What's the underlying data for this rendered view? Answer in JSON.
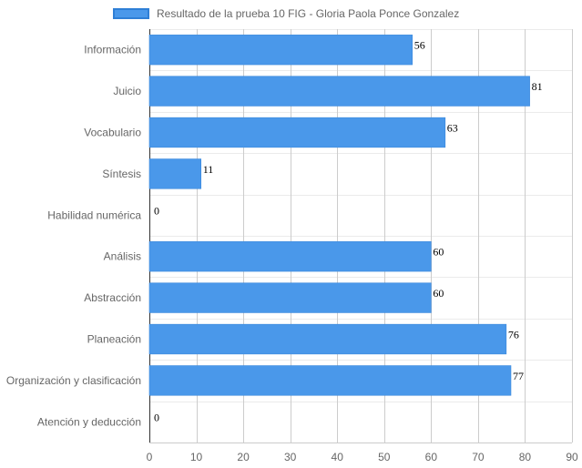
{
  "chart_data": {
    "type": "bar",
    "orientation": "horizontal",
    "categories": [
      "Información",
      "Juicio",
      "Vocabulario",
      "Síntesis",
      "Habilidad numérica",
      "Análisis",
      "Abstracción",
      "Planeación",
      "Organización y clasificación",
      "Atención y deducción"
    ],
    "series": [
      {
        "name": "Resultado de la prueba 10 FIG - Gloria Paola Ponce Gonzalez",
        "values": [
          56,
          81,
          63,
          11,
          0,
          60,
          60,
          76,
          77,
          0
        ],
        "color": "#4a98ea"
      }
    ],
    "xlim": [
      0,
      90
    ],
    "xticks": [
      0,
      10,
      20,
      30,
      40,
      50,
      60,
      70,
      80,
      90
    ],
    "grid": true,
    "legend_position": "top",
    "title": "",
    "xlabel": "",
    "ylabel": ""
  },
  "legend": {
    "label": "Resultado de la prueba 10 FIG - Gloria Paola Ponce Gonzalez"
  }
}
